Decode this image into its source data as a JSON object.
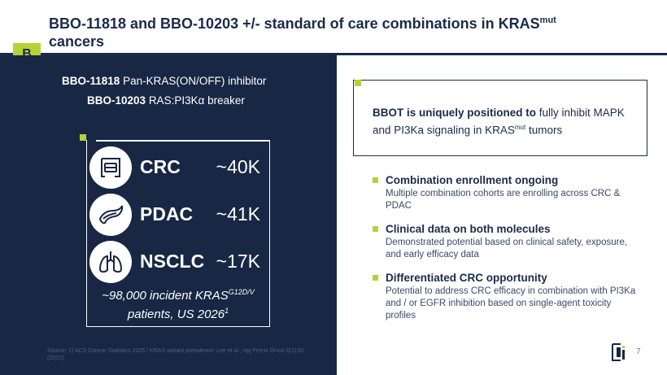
{
  "title": {
    "line1_pre": "BBO-11818 and BBO-10203 +/- standard of care combinations in KRAS",
    "line1_sup": "mut",
    "line2": "cancers"
  },
  "badge": "B",
  "drugs": [
    {
      "name": "BBO-11818",
      "desc": "Pan-KRAS(ON/OFF) inhibitor"
    },
    {
      "name": "BBO-10203",
      "desc": "RAS:PI3Kα breaker"
    }
  ],
  "cancers": [
    {
      "name": "CRC",
      "count": "~40K",
      "icon": "intestine-icon"
    },
    {
      "name": "PDAC",
      "count": "~41K",
      "icon": "pancreas-icon"
    },
    {
      "name": "NSCLC",
      "count": "~17K",
      "icon": "lungs-icon"
    }
  ],
  "incident": {
    "pre": "~98,000 incident KRAS",
    "sup": "G12D/V",
    "line2": "patients, US 2026",
    "line2_sup": "1"
  },
  "source": "Source: 1) ACS Cancer Statistics 2026 / KRAS variant prevalence: Lee et al., npj Precis Oncol 6(1):91 (2022)",
  "callout": {
    "bold": "BBOT is uniquely positioned to",
    "rest": " fully inhibit MAPK and PI3Ka signaling in KRAS",
    "sup": "mut",
    "tail": " tumors"
  },
  "bullets": [
    {
      "heading": "Combination enrollment ongoing",
      "body": "Multiple combination cohorts are enrolling across CRC & PDAC"
    },
    {
      "heading": "Clinical data on both molecules",
      "body": "Demonstrated potential based on clinical safety, exposure, and early efficacy data"
    },
    {
      "heading": "Differentiated CRC opportunity",
      "body": "Potential to address CRC efficacy in combination with PI3Ka and / or EGFR inhibition based on single-agent toxicity profiles"
    }
  ],
  "page_number": "7",
  "colors": {
    "navy": "#182744",
    "accent": "#b5d334"
  }
}
